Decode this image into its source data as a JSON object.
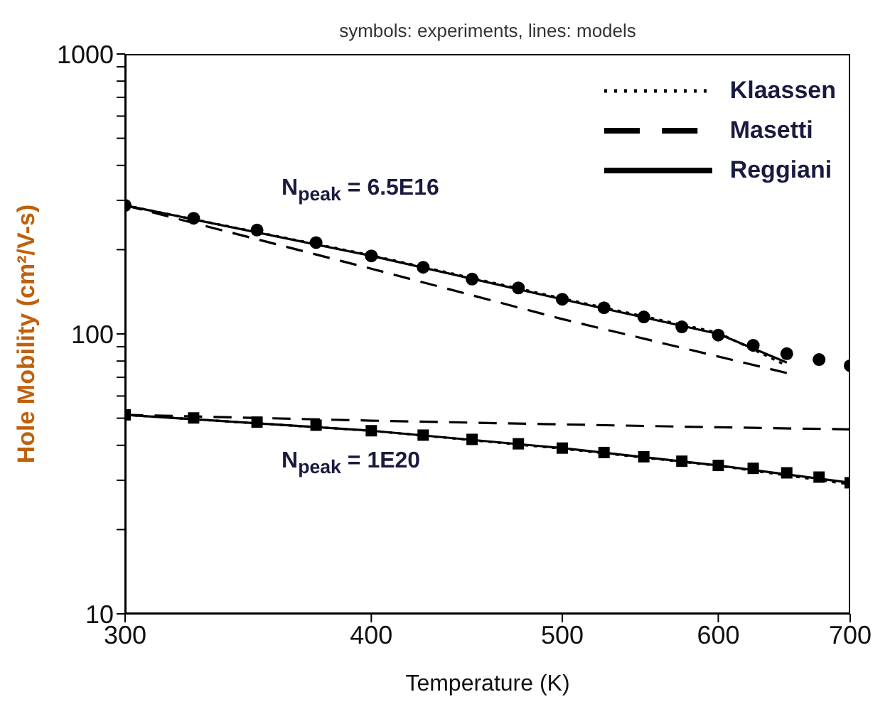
{
  "chart_data": {
    "type": "line",
    "title": "symbols: experiments, lines: models",
    "xlabel": "Temperature (K)",
    "ylabel": "Hole Mobility (cm²/V-s)",
    "log": "xy",
    "grid": false,
    "legend": "top right",
    "xlim": [
      300,
      700
    ],
    "xticks": [
      300,
      400,
      500,
      600,
      700
    ],
    "ylim": [
      10,
      1000
    ],
    "yticks": [
      10,
      {
        "value": 20,
        "label": null
      },
      {
        "value": 30,
        "label": null
      },
      {
        "value": 40,
        "label": null
      },
      {
        "value": 50,
        "label": null
      },
      {
        "value": 60,
        "label": null
      },
      {
        "value": 70,
        "label": null
      },
      {
        "value": 80,
        "label": null
      },
      {
        "value": 90,
        "label": null
      },
      100,
      {
        "value": 200,
        "label": null
      },
      {
        "value": 300,
        "label": null
      },
      {
        "value": 400,
        "label": null
      },
      {
        "value": 500,
        "label": null
      },
      {
        "value": 600,
        "label": null
      },
      {
        "value": 700,
        "label": null
      },
      {
        "value": 800,
        "label": null
      },
      {
        "value": 900,
        "label": null
      },
      1000
    ],
    "annotations": [
      "N$_{peak}$ = 6.5E16",
      "N$_{peak}$ = 1E20"
    ],
    "series": [
      {
        "name": "Klaassen",
        "line_style": "dotted",
        "color": "#000000",
        "x": [
          300,
          400,
          500,
          600,
          650
        ],
        "values": [
          288,
          191,
          134,
          101,
          77
        ]
      },
      {
        "name": "Masetti",
        "line_style": "dashed",
        "color": "#000000",
        "x": [
          300,
          400,
          500,
          650
        ],
        "values": [
          288,
          171,
          113,
          72.5
        ]
      },
      {
        "name": "Reggiani",
        "line_style": "solid",
        "color": "#000000",
        "x": [
          300,
          400,
          500,
          600,
          650
        ],
        "values": [
          288,
          190,
          133,
          100,
          79
        ]
      },
      {
        "type": "line",
        "line_style": "dotted",
        "color": "#000000",
        "x": [
          300,
          400,
          500,
          600,
          700
        ],
        "values": [
          51.4,
          45.1,
          38.9,
          33.8,
          29.0
        ]
      },
      {
        "type": "line",
        "line_style": "dashed",
        "color": "#000000",
        "x": [
          300,
          400,
          500,
          600,
          700
        ],
        "values": [
          51.4,
          49,
          47.5,
          46.4,
          45.6
        ]
      },
      {
        "type": "line",
        "line_style": "solid",
        "color": "#000000",
        "x": [
          300,
          400,
          500,
          600,
          700
        ],
        "values": [
          51.4,
          45.1,
          39.1,
          33.9,
          29.4
        ]
      },
      {
        "type": "scatter",
        "marker": "circle",
        "color": "#000000",
        "x": [
          300,
          325,
          350,
          375,
          400,
          425,
          450,
          475,
          500,
          525,
          550,
          575,
          600,
          625,
          650,
          675,
          700
        ],
        "values": [
          288,
          259,
          235,
          212,
          190,
          173,
          157,
          146,
          133,
          124,
          115,
          106,
          99,
          91,
          85,
          81,
          77
        ]
      },
      {
        "type": "scatter",
        "marker": "square",
        "color": "#000000",
        "x": [
          300,
          325,
          350,
          375,
          400,
          425,
          450,
          475,
          500,
          525,
          550,
          575,
          600,
          625,
          650,
          675,
          700
        ],
        "values": [
          51.4,
          50.1,
          48.4,
          47.2,
          45.1,
          43.5,
          42.0,
          40.5,
          39.1,
          37.7,
          36.4,
          35.1,
          33.9,
          33.1,
          31.9,
          30.8,
          29.4
        ]
      }
    ]
  }
}
